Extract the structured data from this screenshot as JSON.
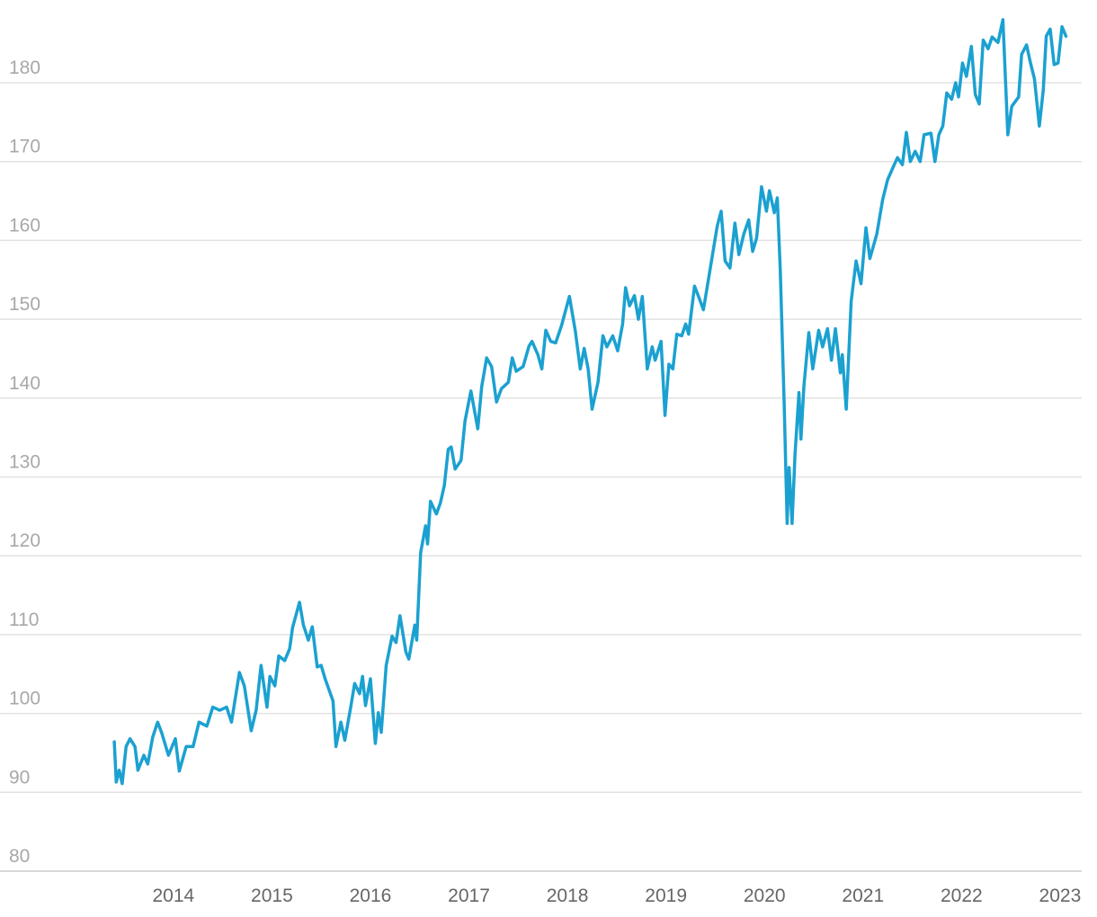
{
  "chart_data": {
    "type": "line",
    "color": "#1ba1d1",
    "grid": true,
    "xlim": [
      2012.24,
      2023.22
    ],
    "xticks": [
      2014,
      2015,
      2016,
      2017,
      2018,
      2019,
      2020,
      2021,
      2022,
      2023
    ],
    "ylim": [
      80,
      190
    ],
    "yticks": [
      80,
      90,
      100,
      110,
      120,
      130,
      140,
      150,
      160,
      170,
      180
    ],
    "x": [
      2013.4,
      2013.42,
      2013.45,
      2013.48,
      2013.52,
      2013.56,
      2013.61,
      2013.64,
      2013.7,
      2013.74,
      2013.79,
      2013.84,
      2013.88,
      2013.95,
      2014.02,
      2014.06,
      2014.13,
      2014.2,
      2014.26,
      2014.34,
      2014.4,
      2014.47,
      2014.54,
      2014.59,
      2014.67,
      2014.72,
      2014.79,
      2014.84,
      2014.89,
      2014.95,
      2014.98,
      2015.03,
      2015.07,
      2015.13,
      2015.18,
      2015.21,
      2015.28,
      2015.32,
      2015.37,
      2015.41,
      2015.46,
      2015.5,
      2015.54,
      2015.62,
      2015.65,
      2015.7,
      2015.74,
      2015.8,
      2015.84,
      2015.89,
      2015.92,
      2015.95,
      2016.0,
      2016.05,
      2016.08,
      2016.11,
      2016.16,
      2016.22,
      2016.26,
      2016.3,
      2016.36,
      2016.39,
      2016.45,
      2016.47,
      2016.51,
      2016.56,
      2016.58,
      2016.61,
      2016.67,
      2016.71,
      2016.75,
      2016.79,
      2016.82,
      2016.86,
      2016.92,
      2016.96,
      2017.02,
      2017.09,
      2017.13,
      2017.18,
      2017.23,
      2017.28,
      2017.33,
      2017.4,
      2017.44,
      2017.48,
      2017.55,
      2017.61,
      2017.64,
      2017.7,
      2017.74,
      2017.78,
      2017.83,
      2017.88,
      2017.94,
      2017.97,
      2018.02,
      2018.08,
      2018.13,
      2018.17,
      2018.21,
      2018.25,
      2018.31,
      2018.36,
      2018.4,
      2018.46,
      2018.51,
      2018.56,
      2018.59,
      2018.63,
      2018.68,
      2018.72,
      2018.76,
      2018.81,
      2018.86,
      2018.89,
      2018.95,
      2018.99,
      2019.03,
      2019.07,
      2019.11,
      2019.16,
      2019.2,
      2019.23,
      2019.29,
      2019.33,
      2019.38,
      2019.42,
      2019.47,
      2019.52,
      2019.56,
      2019.6,
      2019.65,
      2019.7,
      2019.74,
      2019.79,
      2019.84,
      2019.88,
      2019.92,
      2019.97,
      2020.02,
      2020.05,
      2020.1,
      2020.13,
      2020.16,
      2020.2,
      2020.23,
      2020.25,
      2020.28,
      2020.31,
      2020.35,
      2020.37,
      2020.4,
      2020.45,
      2020.49,
      2020.55,
      2020.59,
      2020.64,
      2020.68,
      2020.72,
      2020.77,
      2020.79,
      2020.83,
      2020.88,
      2020.93,
      2020.98,
      2021.03,
      2021.07,
      2021.14,
      2021.2,
      2021.25,
      2021.31,
      2021.35,
      2021.4,
      2021.44,
      2021.48,
      2021.53,
      2021.58,
      2021.62,
      2021.69,
      2021.73,
      2021.77,
      2021.81,
      2021.85,
      2021.9,
      2021.94,
      2021.97,
      2022.01,
      2022.05,
      2022.1,
      2022.14,
      2022.18,
      2022.22,
      2022.27,
      2022.31,
      2022.37,
      2022.42,
      2022.47,
      2022.51,
      2022.58,
      2022.61,
      2022.66,
      2022.7,
      2022.74,
      2022.79,
      2022.83,
      2022.86,
      2022.9,
      2022.94,
      2022.98,
      2023.02,
      2023.06
    ],
    "values": [
      96.4,
      91.3,
      92.8,
      91.1,
      95.8,
      96.8,
      95.8,
      92.8,
      94.7,
      93.6,
      97,
      98.9,
      97.6,
      94.7,
      96.8,
      92.7,
      95.8,
      95.8,
      98.9,
      98.4,
      100.8,
      100.4,
      100.8,
      98.9,
      105.2,
      103.5,
      97.8,
      100.4,
      106.1,
      100.8,
      104.7,
      103.5,
      107.3,
      106.7,
      108.2,
      110.9,
      114.1,
      111.2,
      109.3,
      111,
      105.9,
      106.1,
      104.4,
      101.6,
      95.8,
      98.9,
      96.6,
      100.8,
      103.8,
      102.5,
      104.7,
      101,
      104.4,
      96.2,
      100.1,
      97.6,
      106.1,
      109.8,
      109,
      112.4,
      107.8,
      106.9,
      111.2,
      109.3,
      120.4,
      123.8,
      121.5,
      126.9,
      125.3,
      126.7,
      128.9,
      133.5,
      133.8,
      131,
      132.1,
      137.1,
      140.9,
      136.1,
      141.5,
      145.1,
      144,
      139.5,
      141.2,
      142,
      145.1,
      143.4,
      144,
      146.6,
      147.2,
      145.5,
      143.7,
      148.6,
      147.2,
      147,
      149.2,
      150.6,
      152.9,
      148.5,
      143.7,
      146.3,
      143.7,
      138.6,
      142,
      147.9,
      146.5,
      147.9,
      146,
      149.4,
      154,
      151.7,
      153,
      150,
      152.9,
      143.7,
      146.5,
      144.8,
      147.2,
      137.8,
      144.3,
      143.7,
      148.1,
      147.9,
      149.4,
      148.1,
      154.2,
      152.9,
      151.2,
      154.2,
      158,
      161.8,
      163.7,
      157.4,
      156.5,
      162.2,
      158.2,
      160.8,
      162.6,
      158.6,
      160.3,
      166.8,
      163.7,
      166.3,
      163.5,
      165.4,
      156.3,
      139.2,
      124.1,
      131.2,
      124.1,
      132.9,
      140.7,
      134.8,
      141.5,
      148.3,
      143.7,
      148.6,
      146.5,
      148.8,
      144.8,
      148.8,
      143.2,
      145.5,
      138.6,
      152.3,
      157.4,
      154.5,
      161.6,
      157.7,
      160.8,
      165.2,
      167.7,
      169.4,
      170.5,
      169.6,
      173.7,
      170,
      171.3,
      170,
      173.4,
      173.6,
      170,
      173.4,
      174.5,
      178.7,
      177.9,
      180,
      178.2,
      182.5,
      180.8,
      184.6,
      178.5,
      177.3,
      185.4,
      184.3,
      185.8,
      185.1,
      188,
      173.4,
      177,
      178.2,
      183.6,
      184.8,
      182.5,
      180.5,
      174.5,
      179.1,
      185.9,
      186.8,
      182.3,
      182.5,
      187.1,
      185.9
    ]
  }
}
